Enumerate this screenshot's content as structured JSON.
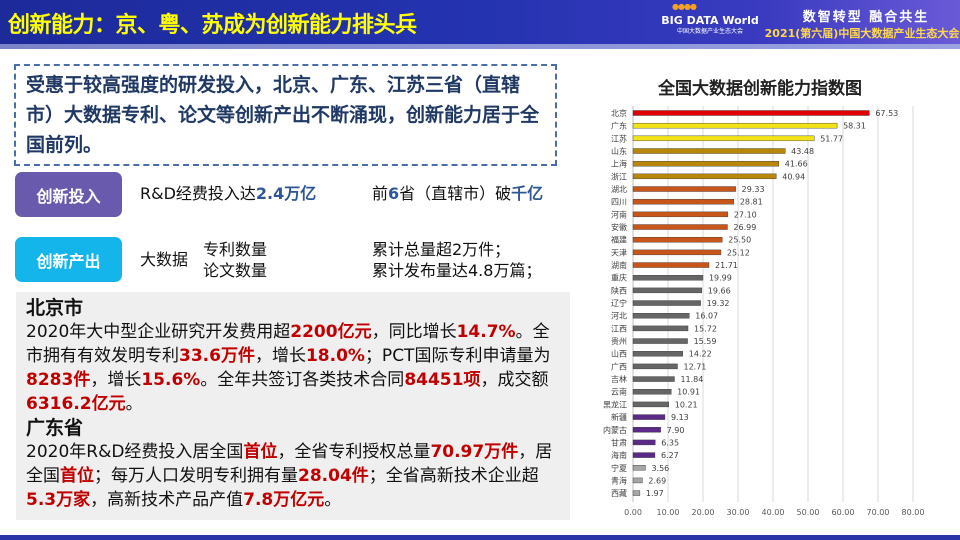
{
  "header": {
    "title": "创新能力：京、粤、苏成为创新能力排头兵",
    "logo_text": "BIG DATA World",
    "logo_sub": "中国大数据产业生态大会",
    "slogan": "数智转型 融合共生",
    "conference": "2021(第六届)中国大数据产业生态大会"
  },
  "intro": "受惠于较高强度的研发投入，北京、广东、江苏三省（直辖市）大数据专利、论文等创新产出不断涌现，创新能力居于全国前列。",
  "input": {
    "label": "创新投入",
    "item1_pre": "R&D经费投入达",
    "item1_hl": "2.4万亿",
    "item2_pre": "前",
    "item2_hl1": "6",
    "item2_mid": "省（直辖市）破",
    "item2_hl2": "千亿"
  },
  "output": {
    "label": "创新产出",
    "big_data": "大数据",
    "patent": "专利数量",
    "paper": "论文数量",
    "patent_value": "累计总量超2万件；",
    "paper_value": "累计发布量达4.8万篇；"
  },
  "beijing": {
    "title": "北京市",
    "segments": [
      {
        "t": "2020年大中型企业研究开发费用超"
      },
      {
        "t": "2200亿元",
        "hl": true
      },
      {
        "t": "，同比增长"
      },
      {
        "t": "14.7%",
        "hl": true
      },
      {
        "t": "。全市拥有有效发明专利"
      },
      {
        "t": "33.6万件",
        "hl": true
      },
      {
        "t": "，增长"
      },
      {
        "t": "18.0%",
        "hl": true
      },
      {
        "t": "；PCT国际专利申请量为"
      },
      {
        "t": "8283件",
        "hl": true
      },
      {
        "t": "，增长"
      },
      {
        "t": "15.6%",
        "hl": true
      },
      {
        "t": "。全年共签订各类技术合同"
      },
      {
        "t": "84451项",
        "hl": true
      },
      {
        "t": "，成交额"
      },
      {
        "t": "6316.2亿元",
        "hl": true
      },
      {
        "t": "。"
      }
    ]
  },
  "guangdong": {
    "title": "广东省",
    "segments": [
      {
        "t": "2020年R&D经费投入居全国"
      },
      {
        "t": "首位",
        "hl": true
      },
      {
        "t": "，全省专利授权总量"
      },
      {
        "t": "70.97万件",
        "hl": true
      },
      {
        "t": "，居全国"
      },
      {
        "t": "首位",
        "hl": true
      },
      {
        "t": "；每万人口发明专利拥有量"
      },
      {
        "t": "28.04件",
        "hl": true
      },
      {
        "t": "；全省高新技术企业超"
      },
      {
        "t": "5.3万家",
        "hl": true
      },
      {
        "t": "，高新技术产品产值"
      },
      {
        "t": "7.8万亿元",
        "hl": true
      },
      {
        "t": "。"
      }
    ]
  },
  "chart_data": {
    "type": "bar",
    "orientation": "horizontal",
    "title": "全国大数据创新能力指数图",
    "categories": [
      "北京",
      "广东",
      "江苏",
      "山东",
      "上海",
      "浙江",
      "湖北",
      "四川",
      "河南",
      "安徽",
      "福建",
      "天津",
      "湖南",
      "重庆",
      "陕西",
      "辽宁",
      "河北",
      "江西",
      "贵州",
      "山西",
      "广西",
      "吉林",
      "云南",
      "黑龙江",
      "新疆",
      "内蒙古",
      "甘肃",
      "海南",
      "宁夏",
      "青海",
      "西藏"
    ],
    "values": [
      67.53,
      58.31,
      51.77,
      43.48,
      41.66,
      40.94,
      29.33,
      28.81,
      27.1,
      26.99,
      25.5,
      25.12,
      21.71,
      19.99,
      19.66,
      19.32,
      16.07,
      15.72,
      15.59,
      14.22,
      12.71,
      11.84,
      10.91,
      10.21,
      9.13,
      7.9,
      6.35,
      6.27,
      3.56,
      2.69,
      1.97
    ],
    "labels": [
      "67.53",
      "58.31",
      "51.77",
      "43.48",
      "41.66",
      "40.94",
      "29.33",
      "28.81",
      "27.10",
      "26.99",
      "25.50",
      "25.12",
      "21.71",
      "19.99",
      "19.66",
      "19.32",
      "16.07",
      "15.72",
      "15.59",
      "14.22",
      "12.71",
      "11.84",
      "10.91",
      "10.21",
      "9.13",
      "7.90",
      "6.35",
      "6.27",
      "3.56",
      "2.69",
      "1.97"
    ],
    "colors": [
      "#e00000",
      "#f2e21a",
      "#f2e21a",
      "#b8860b",
      "#b8860b",
      "#b8860b",
      "#c8561a",
      "#c8561a",
      "#c8561a",
      "#c8561a",
      "#c8561a",
      "#c8561a",
      "#c8561a",
      "#666666",
      "#666666",
      "#666666",
      "#666666",
      "#666666",
      "#666666",
      "#666666",
      "#666666",
      "#666666",
      "#666666",
      "#666666",
      "#5b2a86",
      "#5b2a86",
      "#5b2a86",
      "#5b2a86",
      "#a6a6a6",
      "#a6a6a6",
      "#a6a6a6"
    ],
    "xlim": [
      0,
      80
    ],
    "xticks": [
      "0.00",
      "10.00",
      "20.00",
      "30.00",
      "40.00",
      "50.00",
      "60.00",
      "70.00",
      "80.00"
    ],
    "grid": true
  }
}
